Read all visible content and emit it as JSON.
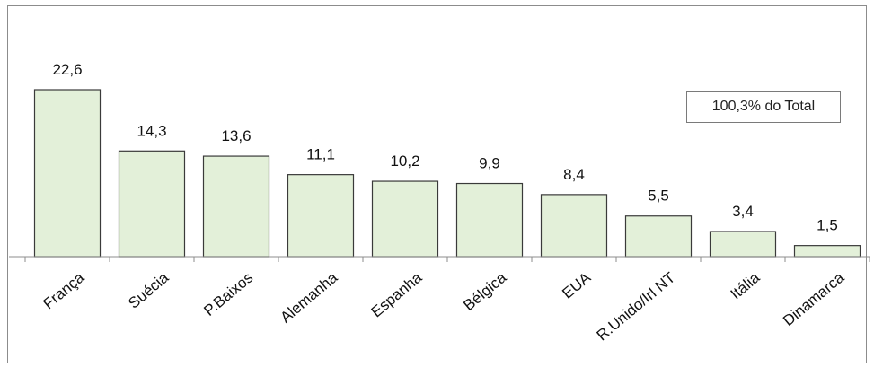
{
  "chart_data": {
    "type": "bar",
    "categories": [
      "França",
      "Suécia",
      "P.Baixos",
      "Alemanha",
      "Espanha",
      "Bélgica",
      "EUA",
      "R.Unido/Irl NT",
      "Itália",
      "Dinamarca"
    ],
    "values": [
      22.6,
      14.3,
      13.6,
      11.1,
      10.2,
      9.9,
      8.4,
      5.5,
      3.4,
      1.5
    ],
    "value_labels": [
      "22,6",
      "14,3",
      "13,6",
      "11,1",
      "10,2",
      "9,9",
      "8,4",
      "5,5",
      "3,4",
      "1,5"
    ],
    "annotation": "100,3% do Total",
    "title": "",
    "xlabel": "",
    "ylabel": "",
    "ylim": [
      0,
      22.6
    ],
    "grid": false,
    "colors": {
      "bar_fill": "#e3f0d9",
      "bar_stroke": "#3a3a3a"
    }
  }
}
